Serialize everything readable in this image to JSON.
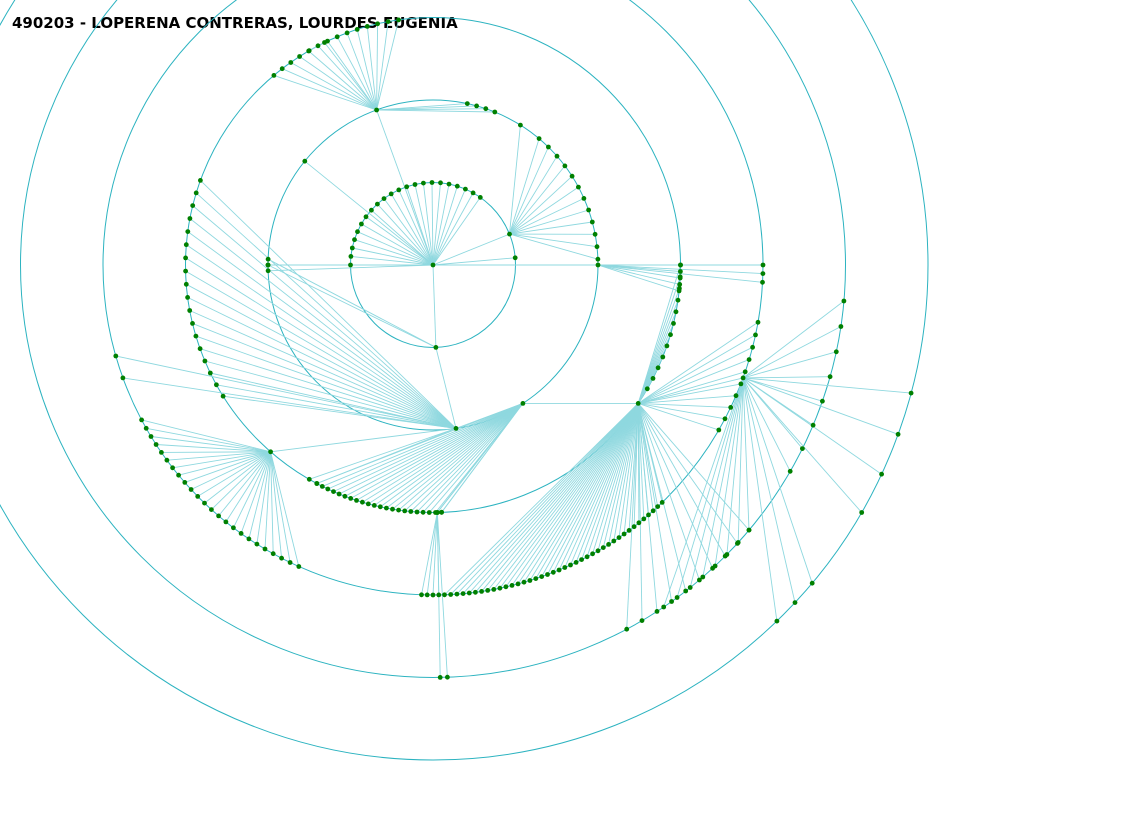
{
  "title": "490203 - LOPERENA CONTRERAS, LOURDES EUGENIA",
  "colors": {
    "background": "#ffffff",
    "ring": "#2cb3c0",
    "link": "#8fd8df",
    "node": "#008000",
    "title": "#000000"
  },
  "tree": {
    "levels": 6,
    "leaf_groups_level_1": 35,
    "root_branches": 6
  }
}
